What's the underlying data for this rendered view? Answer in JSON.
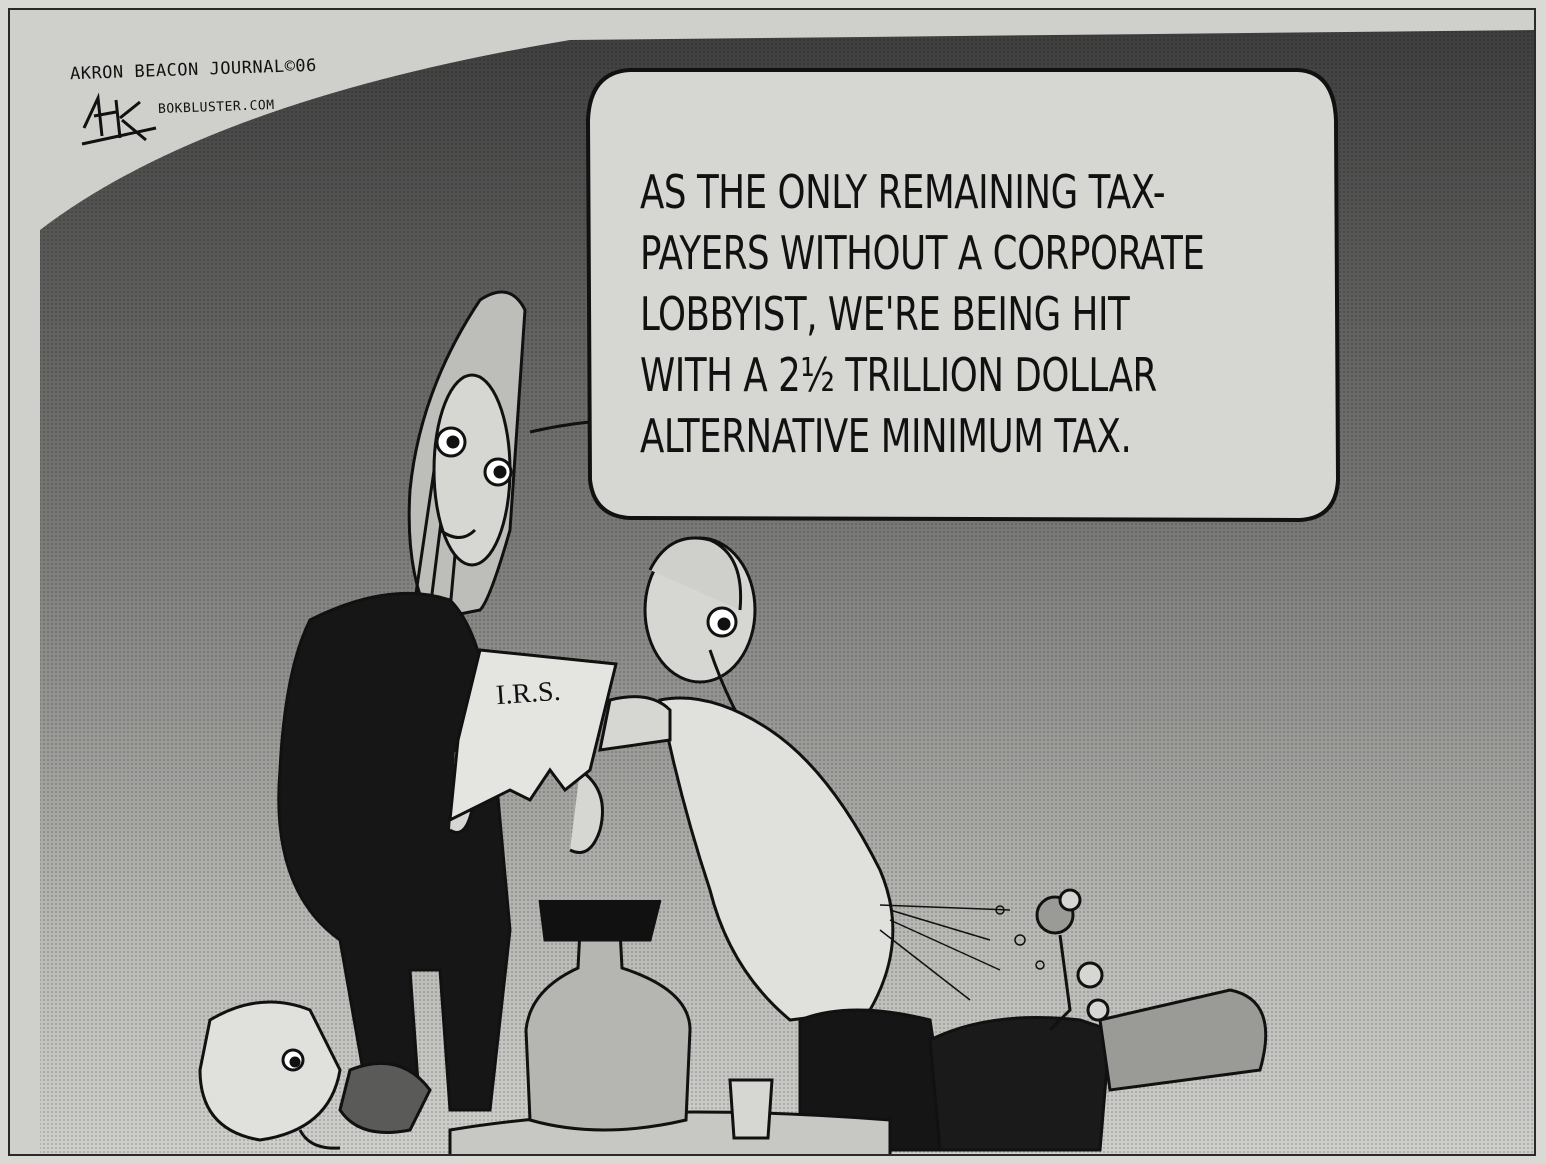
{
  "credit": {
    "publication": "AKRON BEACON JOURNAL©06",
    "signature": "BOK",
    "website": "BOKBLUSTER.COM"
  },
  "speech_bubble": {
    "lines": [
      "AS THE ONLY REMAINING TAX-",
      "PAYERS WITHOUT A CORPORATE",
      "LOBBYIST, WE'RE BEING HIT",
      "WITH A 2½ TRILLION DOLLAR",
      "ALTERNATIVE MINIMUM TAX."
    ]
  },
  "document_label": "I.R.S.",
  "colors": {
    "ink": "#111111",
    "sky_dark": "#4a4a4a",
    "sky_light": "#cfcfcc",
    "bubble_fill": "#d6d6d3"
  }
}
